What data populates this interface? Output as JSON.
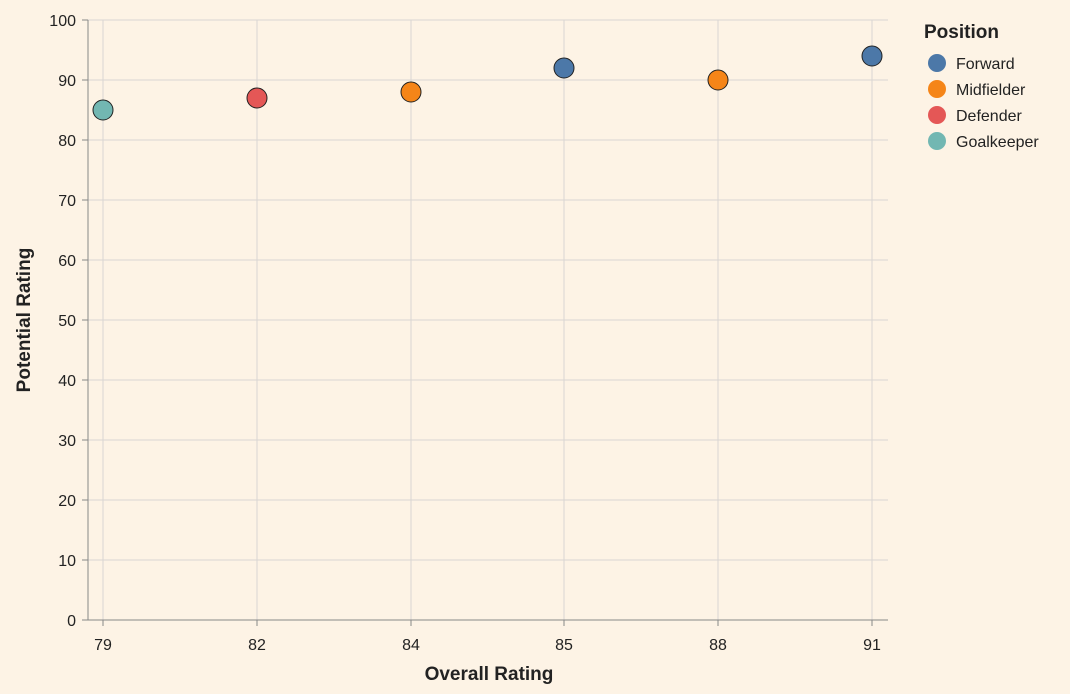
{
  "chart_data": {
    "type": "scatter",
    "xlabel": "Overall Rating",
    "ylabel": "Potential Rating",
    "x_categories": [
      "79",
      "82",
      "84",
      "85",
      "88",
      "91"
    ],
    "ylim": [
      0,
      100
    ],
    "y_ticks": [
      0,
      10,
      20,
      30,
      40,
      50,
      60,
      70,
      80,
      90,
      100
    ],
    "grid": true,
    "legend": {
      "title": "Position",
      "placement": "top-right",
      "entries": [
        "Forward",
        "Midfielder",
        "Defender",
        "Goalkeeper"
      ]
    },
    "colors": {
      "Forward": "#4c78a8",
      "Midfielder": "#f58518",
      "Defender": "#e45756",
      "Goalkeeper": "#72b7b2"
    },
    "background": "#fdf3e5",
    "points": [
      {
        "x": "79",
        "y": 85,
        "position": "Goalkeeper"
      },
      {
        "x": "82",
        "y": 87,
        "position": "Defender"
      },
      {
        "x": "84",
        "y": 88,
        "position": "Midfielder"
      },
      {
        "x": "85",
        "y": 92,
        "position": "Forward"
      },
      {
        "x": "88",
        "y": 90,
        "position": "Midfielder"
      },
      {
        "x": "91",
        "y": 94,
        "position": "Forward"
      }
    ]
  }
}
